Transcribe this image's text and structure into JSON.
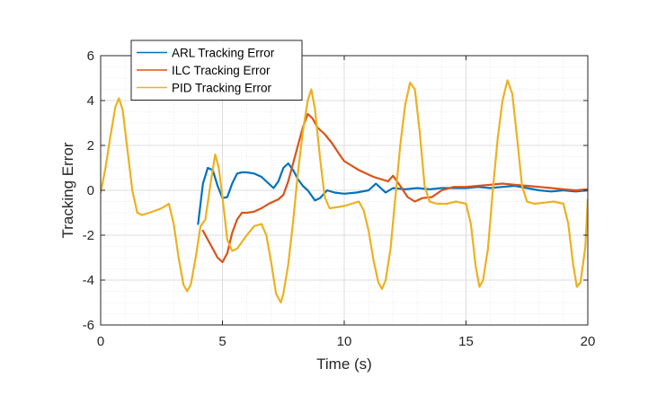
{
  "chart_data": {
    "type": "line",
    "xlabel": "Time (s)",
    "ylabel": "Tracking Error",
    "xlim": [
      0,
      20
    ],
    "ylim": [
      -6,
      6
    ],
    "xticks": [
      "0",
      "5",
      "10",
      "15",
      "20"
    ],
    "yticks": [
      "-6",
      "-4",
      "-2",
      "0",
      "2",
      "4",
      "6"
    ],
    "grid": true,
    "minor_grid": true,
    "legend_position": "top-left",
    "series": [
      {
        "name": "ARL Tracking Error",
        "color": "#0072BD",
        "x": [
          4.0,
          4.2,
          4.4,
          4.6,
          4.8,
          5.0,
          5.2,
          5.4,
          5.6,
          5.8,
          6.0,
          6.3,
          6.6,
          6.9,
          7.1,
          7.3,
          7.5,
          7.7,
          7.9,
          8.1,
          8.3,
          8.5,
          8.8,
          9.0,
          9.3,
          9.6,
          10.0,
          10.5,
          11.0,
          11.3,
          11.5,
          11.7,
          12.0,
          12.5,
          13.0,
          13.5,
          14.0,
          14.5,
          15.0,
          15.5,
          16.0,
          16.5,
          17.0,
          17.5,
          18.0,
          18.5,
          19.0,
          19.5,
          20.0
        ],
        "y": [
          -1.5,
          0.3,
          1.0,
          0.9,
          0.2,
          -0.35,
          -0.3,
          0.3,
          0.75,
          0.8,
          0.8,
          0.75,
          0.6,
          0.3,
          0.1,
          0.4,
          1.0,
          1.2,
          0.9,
          0.5,
          0.2,
          0.0,
          -0.45,
          -0.35,
          0.0,
          -0.1,
          -0.15,
          -0.1,
          0.0,
          0.3,
          0.1,
          -0.1,
          0.1,
          0.05,
          0.1,
          0.05,
          0.1,
          0.1,
          0.1,
          0.15,
          0.1,
          0.15,
          0.2,
          0.1,
          0.0,
          -0.05,
          0.0,
          -0.05,
          0.0
        ]
      },
      {
        "name": "ILC Tracking Error",
        "color": "#D95319",
        "x": [
          4.2,
          4.4,
          4.6,
          4.8,
          5.0,
          5.2,
          5.4,
          5.6,
          5.8,
          6.0,
          6.3,
          6.6,
          6.9,
          7.1,
          7.3,
          7.5,
          7.7,
          7.9,
          8.1,
          8.3,
          8.5,
          8.7,
          8.9,
          9.2,
          9.5,
          9.8,
          10.0,
          10.3,
          10.6,
          10.9,
          11.2,
          11.5,
          11.8,
          12.0,
          12.3,
          12.6,
          12.9,
          13.2,
          13.6,
          14.0,
          14.5,
          15.0,
          15.5,
          16.0,
          16.5,
          17.0,
          17.5,
          18.0,
          18.5,
          19.0,
          19.5,
          20.0
        ],
        "y": [
          -1.8,
          -2.2,
          -2.6,
          -3.0,
          -3.2,
          -2.8,
          -1.9,
          -1.3,
          -1.0,
          -1.0,
          -0.95,
          -0.8,
          -0.6,
          -0.5,
          -0.4,
          -0.2,
          0.4,
          1.2,
          2.0,
          2.8,
          3.4,
          3.2,
          2.8,
          2.5,
          2.1,
          1.6,
          1.3,
          1.1,
          0.9,
          0.75,
          0.6,
          0.5,
          0.4,
          0.65,
          0.2,
          -0.3,
          -0.5,
          -0.35,
          -0.3,
          0.0,
          0.15,
          0.15,
          0.2,
          0.25,
          0.3,
          0.25,
          0.2,
          0.15,
          0.1,
          0.05,
          0.0,
          0.05
        ]
      },
      {
        "name": "PID Tracking Error",
        "color": "#EDB120",
        "x": [
          0.0,
          0.2,
          0.4,
          0.6,
          0.75,
          0.9,
          1.1,
          1.3,
          1.5,
          1.7,
          2.0,
          2.5,
          2.8,
          3.0,
          3.2,
          3.4,
          3.55,
          3.7,
          3.9,
          4.1,
          4.3,
          4.5,
          4.7,
          4.85,
          5.0,
          5.2,
          5.4,
          5.6,
          5.8,
          6.0,
          6.3,
          6.6,
          6.8,
          7.0,
          7.2,
          7.4,
          7.5,
          7.7,
          7.9,
          8.1,
          8.3,
          8.5,
          8.65,
          8.8,
          9.0,
          9.2,
          9.4,
          9.7,
          10.0,
          10.3,
          10.6,
          10.8,
          11.0,
          11.2,
          11.4,
          11.55,
          11.7,
          11.9,
          12.1,
          12.3,
          12.5,
          12.7,
          12.9,
          13.1,
          13.3,
          13.5,
          13.8,
          14.2,
          14.6,
          15.0,
          15.2,
          15.4,
          15.55,
          15.7,
          15.9,
          16.1,
          16.3,
          16.5,
          16.7,
          16.9,
          17.1,
          17.3,
          17.5,
          17.8,
          18.2,
          18.6,
          19.0,
          19.2,
          19.4,
          19.55,
          19.7,
          19.9,
          20.0
        ],
        "y": [
          -0.1,
          1.0,
          2.4,
          3.7,
          4.1,
          3.6,
          1.8,
          0.0,
          -1.0,
          -1.1,
          -1.0,
          -0.8,
          -0.6,
          -1.5,
          -3.0,
          -4.2,
          -4.5,
          -4.2,
          -3.0,
          -1.6,
          -1.3,
          0.2,
          1.6,
          1.0,
          -0.3,
          -2.2,
          -2.7,
          -2.6,
          -2.3,
          -2.0,
          -1.6,
          -1.5,
          -2.0,
          -3.2,
          -4.6,
          -5.0,
          -4.6,
          -3.3,
          -1.4,
          0.8,
          2.6,
          4.0,
          4.5,
          3.6,
          1.5,
          -0.3,
          -0.8,
          -0.75,
          -0.7,
          -0.6,
          -0.5,
          -0.9,
          -1.8,
          -3.1,
          -4.1,
          -4.4,
          -4.0,
          -2.6,
          -0.3,
          2.0,
          3.8,
          4.8,
          4.5,
          2.6,
          0.2,
          -0.5,
          -0.6,
          -0.6,
          -0.5,
          -0.6,
          -1.5,
          -3.4,
          -4.3,
          -4.0,
          -2.6,
          0.0,
          2.3,
          4.0,
          4.9,
          4.3,
          2.3,
          0.2,
          -0.5,
          -0.6,
          -0.55,
          -0.5,
          -0.6,
          -1.5,
          -3.3,
          -4.3,
          -4.1,
          -2.5,
          -0.4
        ]
      }
    ]
  }
}
